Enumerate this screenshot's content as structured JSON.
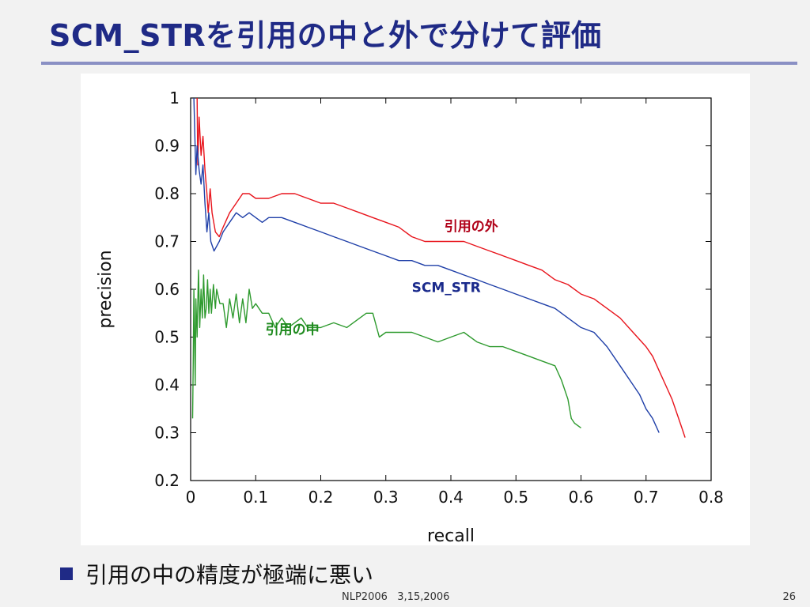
{
  "slide": {
    "title": "SCM_STRを引用の中と外で分けて評価",
    "bullet": "引用の中の精度が極端に悪い",
    "footer": "NLP2006   3,15,2006",
    "page_number": "26"
  },
  "colors": {
    "title": "#1f2a86",
    "bullet_square": "#1f2a86",
    "outside": "#e8141c",
    "scm": "#1f3fa8",
    "inside": "#2e9a2e",
    "label_outside": "#b00018",
    "label_scm": "#1a2a8c",
    "label_inside": "#1e8a1e"
  },
  "chart_data": {
    "type": "line",
    "title": "",
    "xlabel": "recall",
    "ylabel": "precision",
    "xlim": [
      0,
      0.8
    ],
    "ylim": [
      0.2,
      1.0
    ],
    "xticks": [
      "0",
      "0.1",
      "0.2",
      "0.3",
      "0.4",
      "0.5",
      "0.6",
      "0.7",
      "0.8"
    ],
    "yticks": [
      "0.2",
      "0.3",
      "0.4",
      "0.5",
      "0.6",
      "0.7",
      "0.8",
      "0.9",
      "1"
    ],
    "grid": false,
    "series": [
      {
        "name": "引用の外",
        "color_key": "outside",
        "points": [
          [
            0.01,
            1.0
          ],
          [
            0.011,
            0.86
          ],
          [
            0.013,
            0.96
          ],
          [
            0.016,
            0.88
          ],
          [
            0.019,
            0.92
          ],
          [
            0.022,
            0.85
          ],
          [
            0.025,
            0.8
          ],
          [
            0.027,
            0.76
          ],
          [
            0.03,
            0.81
          ],
          [
            0.033,
            0.76
          ],
          [
            0.038,
            0.72
          ],
          [
            0.044,
            0.71
          ],
          [
            0.05,
            0.73
          ],
          [
            0.06,
            0.76
          ],
          [
            0.07,
            0.78
          ],
          [
            0.08,
            0.8
          ],
          [
            0.09,
            0.8
          ],
          [
            0.1,
            0.79
          ],
          [
            0.11,
            0.79
          ],
          [
            0.12,
            0.79
          ],
          [
            0.14,
            0.8
          ],
          [
            0.16,
            0.8
          ],
          [
            0.18,
            0.79
          ],
          [
            0.2,
            0.78
          ],
          [
            0.22,
            0.78
          ],
          [
            0.24,
            0.77
          ],
          [
            0.26,
            0.76
          ],
          [
            0.28,
            0.75
          ],
          [
            0.3,
            0.74
          ],
          [
            0.32,
            0.73
          ],
          [
            0.34,
            0.71
          ],
          [
            0.36,
            0.7
          ],
          [
            0.38,
            0.7
          ],
          [
            0.4,
            0.7
          ],
          [
            0.42,
            0.7
          ],
          [
            0.44,
            0.69
          ],
          [
            0.46,
            0.68
          ],
          [
            0.48,
            0.67
          ],
          [
            0.5,
            0.66
          ],
          [
            0.52,
            0.65
          ],
          [
            0.54,
            0.64
          ],
          [
            0.56,
            0.62
          ],
          [
            0.58,
            0.61
          ],
          [
            0.6,
            0.59
          ],
          [
            0.62,
            0.58
          ],
          [
            0.64,
            0.56
          ],
          [
            0.66,
            0.54
          ],
          [
            0.68,
            0.51
          ],
          [
            0.7,
            0.48
          ],
          [
            0.71,
            0.46
          ],
          [
            0.72,
            0.43
          ],
          [
            0.73,
            0.4
          ],
          [
            0.74,
            0.37
          ],
          [
            0.75,
            0.33
          ],
          [
            0.755,
            0.31
          ],
          [
            0.76,
            0.29
          ]
        ]
      },
      {
        "name": "SCM_STR",
        "color_key": "scm",
        "points": [
          [
            0.005,
            1.0
          ],
          [
            0.008,
            0.84
          ],
          [
            0.01,
            0.9
          ],
          [
            0.013,
            0.85
          ],
          [
            0.016,
            0.82
          ],
          [
            0.019,
            0.86
          ],
          [
            0.022,
            0.78
          ],
          [
            0.025,
            0.72
          ],
          [
            0.028,
            0.76
          ],
          [
            0.031,
            0.7
          ],
          [
            0.036,
            0.68
          ],
          [
            0.044,
            0.7
          ],
          [
            0.05,
            0.72
          ],
          [
            0.06,
            0.74
          ],
          [
            0.07,
            0.76
          ],
          [
            0.08,
            0.75
          ],
          [
            0.09,
            0.76
          ],
          [
            0.1,
            0.75
          ],
          [
            0.11,
            0.74
          ],
          [
            0.12,
            0.75
          ],
          [
            0.14,
            0.75
          ],
          [
            0.16,
            0.74
          ],
          [
            0.18,
            0.73
          ],
          [
            0.2,
            0.72
          ],
          [
            0.22,
            0.71
          ],
          [
            0.24,
            0.7
          ],
          [
            0.26,
            0.69
          ],
          [
            0.28,
            0.68
          ],
          [
            0.3,
            0.67
          ],
          [
            0.32,
            0.66
          ],
          [
            0.34,
            0.66
          ],
          [
            0.36,
            0.65
          ],
          [
            0.38,
            0.65
          ],
          [
            0.4,
            0.64
          ],
          [
            0.42,
            0.63
          ],
          [
            0.44,
            0.62
          ],
          [
            0.46,
            0.61
          ],
          [
            0.48,
            0.6
          ],
          [
            0.5,
            0.59
          ],
          [
            0.52,
            0.58
          ],
          [
            0.54,
            0.57
          ],
          [
            0.56,
            0.56
          ],
          [
            0.58,
            0.54
          ],
          [
            0.6,
            0.52
          ],
          [
            0.62,
            0.51
          ],
          [
            0.64,
            0.48
          ],
          [
            0.66,
            0.44
          ],
          [
            0.68,
            0.4
          ],
          [
            0.69,
            0.38
          ],
          [
            0.7,
            0.35
          ],
          [
            0.71,
            0.33
          ],
          [
            0.72,
            0.3
          ]
        ]
      },
      {
        "name": "引用の中",
        "color_key": "inside",
        "points": [
          [
            0.003,
            0.33
          ],
          [
            0.004,
            0.45
          ],
          [
            0.005,
            0.6
          ],
          [
            0.007,
            0.4
          ],
          [
            0.008,
            0.58
          ],
          [
            0.01,
            0.5
          ],
          [
            0.012,
            0.64
          ],
          [
            0.014,
            0.52
          ],
          [
            0.016,
            0.6
          ],
          [
            0.018,
            0.54
          ],
          [
            0.02,
            0.63
          ],
          [
            0.022,
            0.54
          ],
          [
            0.024,
            0.56
          ],
          [
            0.026,
            0.62
          ],
          [
            0.028,
            0.55
          ],
          [
            0.03,
            0.6
          ],
          [
            0.032,
            0.55
          ],
          [
            0.035,
            0.61
          ],
          [
            0.038,
            0.56
          ],
          [
            0.04,
            0.6
          ],
          [
            0.045,
            0.57
          ],
          [
            0.05,
            0.57
          ],
          [
            0.055,
            0.52
          ],
          [
            0.06,
            0.58
          ],
          [
            0.065,
            0.54
          ],
          [
            0.07,
            0.59
          ],
          [
            0.075,
            0.53
          ],
          [
            0.08,
            0.58
          ],
          [
            0.085,
            0.53
          ],
          [
            0.09,
            0.6
          ],
          [
            0.095,
            0.56
          ],
          [
            0.1,
            0.57
          ],
          [
            0.11,
            0.55
          ],
          [
            0.12,
            0.55
          ],
          [
            0.13,
            0.52
          ],
          [
            0.14,
            0.54
          ],
          [
            0.15,
            0.52
          ],
          [
            0.16,
            0.53
          ],
          [
            0.17,
            0.54
          ],
          [
            0.18,
            0.52
          ],
          [
            0.2,
            0.52
          ],
          [
            0.22,
            0.53
          ],
          [
            0.24,
            0.52
          ],
          [
            0.26,
            0.54
          ],
          [
            0.27,
            0.55
          ],
          [
            0.28,
            0.55
          ],
          [
            0.29,
            0.5
          ],
          [
            0.3,
            0.51
          ],
          [
            0.32,
            0.51
          ],
          [
            0.34,
            0.51
          ],
          [
            0.36,
            0.5
          ],
          [
            0.38,
            0.49
          ],
          [
            0.4,
            0.5
          ],
          [
            0.42,
            0.51
          ],
          [
            0.44,
            0.49
          ],
          [
            0.46,
            0.48
          ],
          [
            0.48,
            0.48
          ],
          [
            0.5,
            0.47
          ],
          [
            0.52,
            0.46
          ],
          [
            0.54,
            0.45
          ],
          [
            0.56,
            0.44
          ],
          [
            0.57,
            0.41
          ],
          [
            0.575,
            0.39
          ],
          [
            0.58,
            0.37
          ],
          [
            0.585,
            0.33
          ],
          [
            0.59,
            0.32
          ],
          [
            0.6,
            0.31
          ]
        ]
      }
    ],
    "annotations": [
      {
        "text": "引用の外",
        "x": 0.39,
        "y": 0.722,
        "color_key": "label_outside"
      },
      {
        "text": "SCM_STR",
        "x": 0.34,
        "y": 0.594,
        "color_key": "label_scm"
      },
      {
        "text": "引用の中",
        "x": 0.115,
        "y": 0.507,
        "color_key": "label_inside"
      }
    ]
  }
}
